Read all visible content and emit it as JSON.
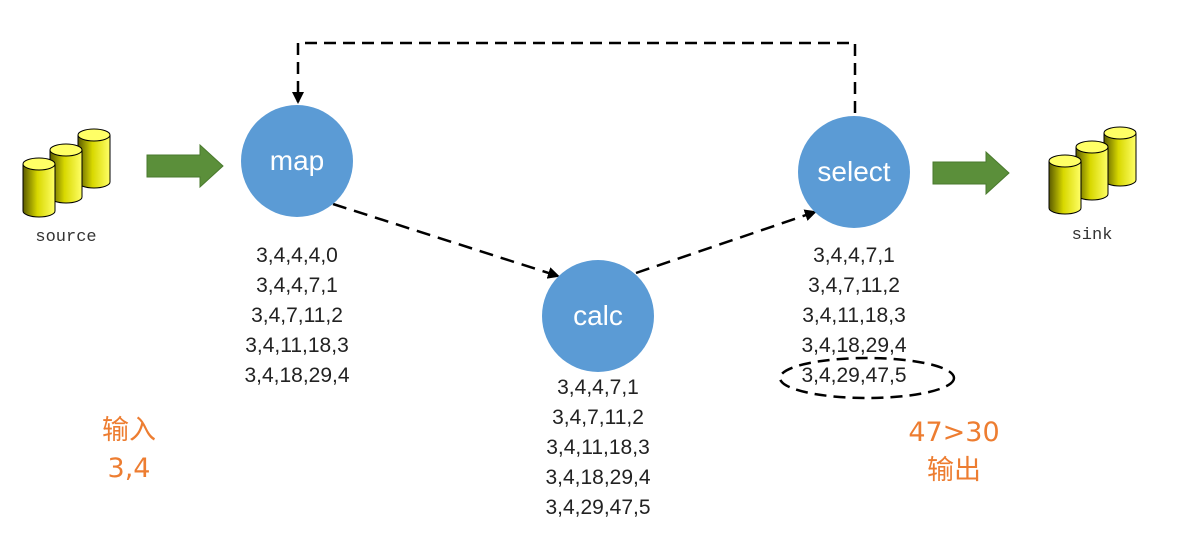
{
  "colors": {
    "node_fill": "#5b9bd5",
    "arrow_green": "#5b8f3a",
    "note_orange": "#ed7d31",
    "cylinder_yellow": "#ffff66"
  },
  "stores": {
    "source_label": "source",
    "sink_label": "sink"
  },
  "nodes": {
    "map": "map",
    "calc": "calc",
    "select": "select"
  },
  "map_rows": [
    "3,4,4,4,0",
    "3,4,4,7,1",
    "3,4,7,11,2",
    "3,4,11,18,3",
    "3,4,18,29,4"
  ],
  "calc_rows": [
    "3,4,4,7,1",
    "3,4,7,11,2",
    "3,4,11,18,3",
    "3,4,18,29,4",
    "3,4,29,47,5"
  ],
  "select_rows": [
    "3,4,4,7,1",
    "3,4,7,11,2",
    "3,4,11,18,3",
    "3,4,18,29,4",
    "3,4,29,47,5"
  ],
  "notes": {
    "input_title": "输入",
    "input_value": "3,4",
    "output_condition": "47>30",
    "output_title": "输出"
  }
}
